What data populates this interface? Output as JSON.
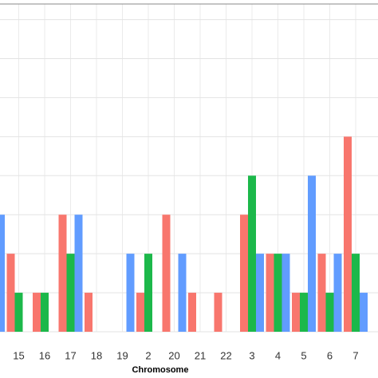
{
  "chart_data": {
    "type": "bar",
    "x_label": "Chromosome",
    "categories": [
      null,
      "15",
      "16",
      "17",
      "18",
      "19",
      "2",
      "20",
      "21",
      "22",
      "3",
      "4",
      "5",
      "6",
      "7"
    ],
    "series": [
      {
        "color": "#f8766d",
        "values": [
          null,
          2,
          1,
          3,
          1,
          0,
          1,
          3,
          1,
          1,
          3,
          2,
          1,
          2,
          5
        ]
      },
      {
        "color": "#1cb84a",
        "values": [
          null,
          1,
          1,
          2,
          0,
          0,
          2,
          0,
          0,
          0,
          4,
          2,
          1,
          1,
          2
        ]
      },
      {
        "color": "#619cff",
        "values": [
          3,
          0,
          0,
          3,
          0,
          2,
          0,
          2,
          0,
          0,
          2,
          2,
          4,
          2,
          1
        ]
      }
    ],
    "ylim": [
      0,
      8.4
    ],
    "yticks": [
      0,
      1,
      2,
      3,
      4,
      5,
      6,
      7,
      8
    ],
    "grid": true
  }
}
